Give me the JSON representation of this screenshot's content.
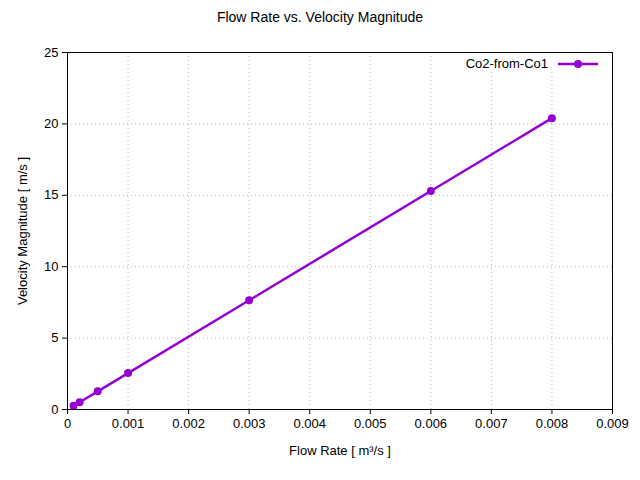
{
  "chart_data": {
    "type": "line",
    "title": "Flow Rate vs. Velocity Magnitude",
    "x_label": "Flow Rate [ m³/s ]",
    "y_label": "Velocity Magnitude [ m/s ]",
    "x": [
      0.0001,
      0.0002,
      0.0005,
      0.001,
      0.003,
      0.006,
      0.008
    ],
    "series": [
      {
        "name": "Co2-from-Co1",
        "color": "#9400d3",
        "marker": "circle",
        "line_style": "solid",
        "values": [
          0.255,
          0.51,
          1.27,
          2.55,
          7.65,
          15.3,
          20.4
        ]
      }
    ],
    "xlim": [
      0,
      0.009
    ],
    "xticks": [
      0,
      0.001,
      0.002,
      0.003,
      0.004,
      0.005,
      0.006,
      0.007,
      0.008,
      0.009
    ],
    "ylim": [
      0,
      25
    ],
    "yticks": [
      0,
      5,
      10,
      15,
      20,
      25
    ],
    "grid": true,
    "legend": "top-right"
  }
}
